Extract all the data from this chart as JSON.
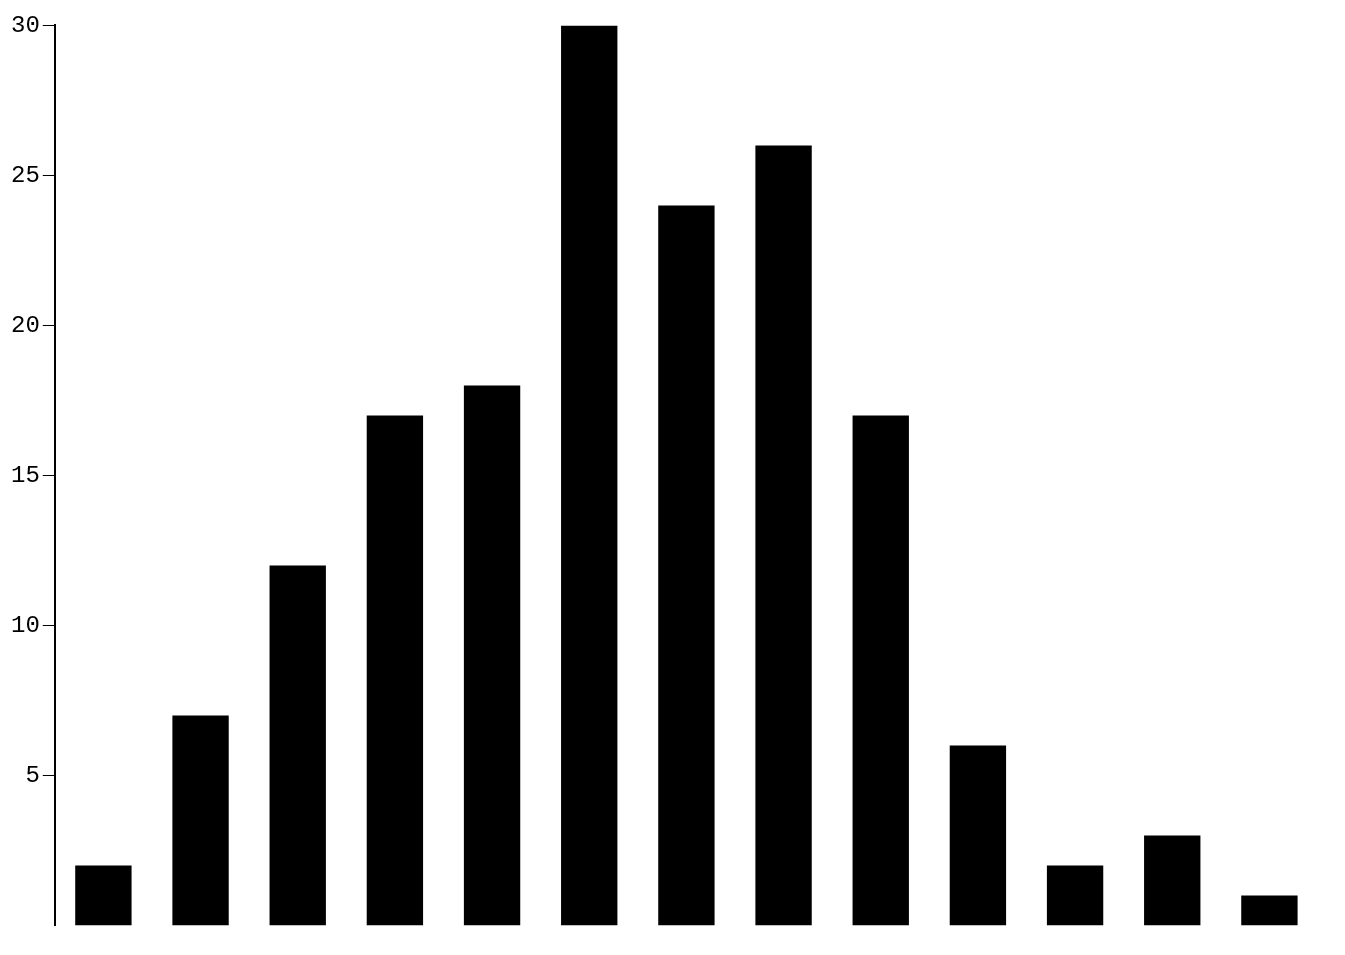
{
  "chart_data": {
    "type": "bar",
    "categories": [
      null,
      null,
      null,
      null,
      null,
      null,
      null,
      null,
      null,
      null,
      null,
      null,
      null
    ],
    "values": [
      2,
      7,
      12,
      17,
      18,
      30,
      24,
      26,
      17,
      6,
      2,
      3,
      1
    ],
    "color": "#000000",
    "ylim": [
      0,
      30
    ],
    "yticks": [
      5,
      10,
      15,
      20,
      25,
      30
    ],
    "grid": false,
    "legend": false
  }
}
